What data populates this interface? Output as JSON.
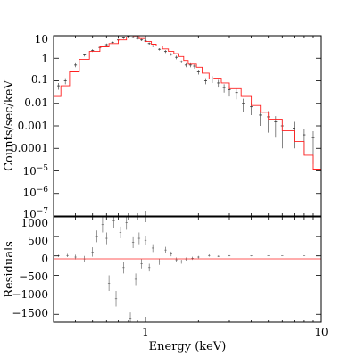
{
  "chart_data": [
    {
      "type": "line",
      "panel": "spectrum",
      "xscale": "log",
      "yscale": "log",
      "xlim": [
        0.3,
        10
      ],
      "ylim": [
        1e-07,
        10
      ],
      "xlabel": "Energy (keV)",
      "ylabel": "Counts/sec/keV",
      "y_tick_labels": [
        "10",
        "1",
        "0.1",
        "0.01",
        "0.001",
        "0.0001",
        "10^-5",
        "10^-6",
        "10^-7"
      ],
      "colors": {
        "data": "#333333",
        "model": "#ff2020",
        "frame": "#000000"
      },
      "series": [
        {
          "role": "data",
          "style": "crosses with error bars",
          "points": [
            [
              0.32,
              0.06,
              0.02
            ],
            [
              0.35,
              0.1,
              0.03
            ],
            [
              0.4,
              0.5,
              0.1
            ],
            [
              0.45,
              1.4,
              0.2
            ],
            [
              0.5,
              2.2,
              0.3
            ],
            [
              0.55,
              3.0,
              0.4
            ],
            [
              0.6,
              4.0,
              0.5
            ],
            [
              0.65,
              5.0,
              0.6
            ],
            [
              0.7,
              6.5,
              0.7
            ],
            [
              0.75,
              8.0,
              0.8
            ],
            [
              0.8,
              9.5,
              0.9
            ],
            [
              0.85,
              8.5,
              0.9
            ],
            [
              0.9,
              7.5,
              0.8
            ],
            [
              0.95,
              6.5,
              0.7
            ],
            [
              1.0,
              5.8,
              0.6
            ],
            [
              1.05,
              4.5,
              0.5
            ],
            [
              1.1,
              3.5,
              0.4
            ],
            [
              1.2,
              2.5,
              0.3
            ],
            [
              1.3,
              2.0,
              0.3
            ],
            [
              1.4,
              1.5,
              0.2
            ],
            [
              1.5,
              1.1,
              0.2
            ],
            [
              1.6,
              0.7,
              0.1
            ],
            [
              1.7,
              0.5,
              0.1
            ],
            [
              1.8,
              0.5,
              0.1
            ],
            [
              1.9,
              0.45,
              0.1
            ],
            [
              2.0,
              0.25,
              0.06
            ],
            [
              2.2,
              0.1,
              0.03
            ],
            [
              2.4,
              0.12,
              0.04
            ],
            [
              2.6,
              0.08,
              0.03
            ],
            [
              2.8,
              0.05,
              0.02
            ],
            [
              3.0,
              0.04,
              0.02
            ],
            [
              3.3,
              0.03,
              0.015
            ],
            [
              3.6,
              0.01,
              0.006
            ],
            [
              4.0,
              0.007,
              0.004
            ],
            [
              4.5,
              0.003,
              0.002
            ],
            [
              5.0,
              0.0025,
              0.002
            ],
            [
              5.5,
              0.0015,
              0.0012
            ],
            [
              6.0,
              0.001,
              0.0009
            ],
            [
              7.0,
              0.0008,
              0.0007
            ],
            [
              8.0,
              0.0004,
              0.00035
            ],
            [
              9.0,
              0.0003,
              0.00028
            ]
          ]
        },
        {
          "role": "model",
          "style": "histogram line",
          "points": [
            [
              0.3,
              0.02
            ],
            [
              0.33,
              0.06
            ],
            [
              0.37,
              0.25
            ],
            [
              0.42,
              0.9
            ],
            [
              0.48,
              2.0
            ],
            [
              0.55,
              3.2
            ],
            [
              0.62,
              4.5
            ],
            [
              0.7,
              6.5
            ],
            [
              0.78,
              8.8
            ],
            [
              0.85,
              9.0
            ],
            [
              0.92,
              7.5
            ],
            [
              1.0,
              5.5
            ],
            [
              1.08,
              4.2
            ],
            [
              1.15,
              3.5
            ],
            [
              1.25,
              2.6
            ],
            [
              1.35,
              2.0
            ],
            [
              1.45,
              1.6
            ],
            [
              1.55,
              1.2
            ],
            [
              1.65,
              0.8
            ],
            [
              1.75,
              0.55
            ],
            [
              1.85,
              0.55
            ],
            [
              1.95,
              0.4
            ],
            [
              2.1,
              0.22
            ],
            [
              2.3,
              0.12
            ],
            [
              2.45,
              0.13
            ],
            [
              2.7,
              0.08
            ],
            [
              3.0,
              0.045
            ],
            [
              3.5,
              0.02
            ],
            [
              4.0,
              0.008
            ],
            [
              4.5,
              0.004
            ],
            [
              5.0,
              0.002
            ],
            [
              6.0,
              0.0006
            ],
            [
              7.0,
              0.0002
            ],
            [
              8.0,
              5e-05
            ],
            [
              9.0,
              1.2e-05
            ],
            [
              10.0,
              2e-06
            ]
          ]
        }
      ]
    },
    {
      "type": "scatter",
      "panel": "residuals",
      "xscale": "log",
      "xlim": [
        0.3,
        10
      ],
      "ylim": [
        -1700,
        1000
      ],
      "xlabel": "Energy (keV)",
      "ylabel": "Residuals",
      "x_tick_labels": [
        "1",
        "10"
      ],
      "y_tick_labels": [
        "1000",
        "500",
        "0",
        "−500",
        "−1000",
        "−1500"
      ],
      "series": [
        {
          "role": "residuals",
          "style": "error bars",
          "points": [
            [
              0.32,
              0,
              30
            ],
            [
              0.36,
              10,
              40
            ],
            [
              0.4,
              -30,
              60
            ],
            [
              0.45,
              -80,
              80
            ],
            [
              0.5,
              100,
              120
            ],
            [
              0.53,
              500,
              150
            ],
            [
              0.57,
              800,
              200
            ],
            [
              0.6,
              450,
              150
            ],
            [
              0.62,
              -700,
              200
            ],
            [
              0.66,
              900,
              180
            ],
            [
              0.68,
              -1100,
              200
            ],
            [
              0.72,
              600,
              150
            ],
            [
              0.75,
              -300,
              150
            ],
            [
              0.78,
              850,
              180
            ],
            [
              0.82,
              -1600,
              150
            ],
            [
              0.85,
              350,
              150
            ],
            [
              0.88,
              -600,
              150
            ],
            [
              0.92,
              450,
              150
            ],
            [
              0.95,
              -200,
              120
            ],
            [
              1.0,
              400,
              120
            ],
            [
              1.05,
              -300,
              100
            ],
            [
              1.1,
              200,
              100
            ],
            [
              1.2,
              -150,
              80
            ],
            [
              1.3,
              150,
              80
            ],
            [
              1.4,
              50,
              60
            ],
            [
              1.5,
              -100,
              60
            ],
            [
              1.6,
              -150,
              50
            ],
            [
              1.7,
              -80,
              40
            ],
            [
              1.85,
              -60,
              40
            ],
            [
              2.0,
              -30,
              30
            ],
            [
              2.3,
              10,
              30
            ],
            [
              2.6,
              -10,
              20
            ],
            [
              3.0,
              5,
              15
            ],
            [
              4.0,
              0,
              10
            ],
            [
              5.0,
              0,
              8
            ],
            [
              6.0,
              0,
              6
            ],
            [
              8.0,
              0,
              5
            ],
            [
              9.5,
              0,
              5
            ]
          ]
        }
      ]
    }
  ]
}
